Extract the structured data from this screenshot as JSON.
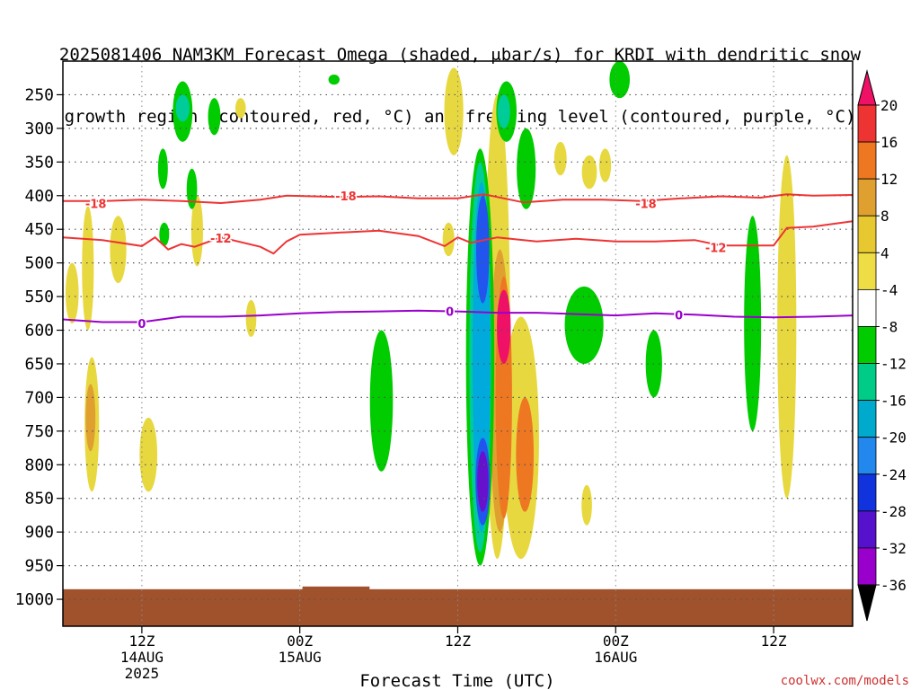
{
  "title": {
    "line1": "2025081406 NAM3KM Forecast Omega (shaded, μbar/s) for KRDI with dendritic snow",
    "line2": "growth region (contoured, red, °C) and freezing level (contoured, purple, °C)"
  },
  "credit": "coolwx.com/models",
  "chart_data": {
    "type": "heatmap",
    "xlabel": "Forecast Time (UTC)",
    "ylabel": "",
    "x_unit": "hours since 2025-08-14 06Z",
    "xlim": [
      0,
      60
    ],
    "ylim": [
      1040,
      200
    ],
    "y_ticks": [
      250,
      300,
      350,
      400,
      450,
      500,
      550,
      600,
      650,
      700,
      750,
      800,
      850,
      900,
      950,
      1000
    ],
    "x_ticks": [
      {
        "x": 6,
        "label": "12Z",
        "sub": "14AUG",
        "sub2": "2025"
      },
      {
        "x": 18,
        "label": "00Z",
        "sub": "15AUG",
        "sub2": ""
      },
      {
        "x": 30,
        "label": "12Z",
        "sub": "",
        "sub2": ""
      },
      {
        "x": 42,
        "label": "00Z",
        "sub": "16AUG",
        "sub2": ""
      },
      {
        "x": 54,
        "label": "12Z",
        "sub": "",
        "sub2": ""
      }
    ],
    "grid": true,
    "colorbar": {
      "labels": [
        "20",
        "16",
        "12",
        "8",
        "4",
        "-4",
        "-8",
        "-12",
        "-16",
        "-20",
        "-24",
        "-28",
        "-32",
        "-36"
      ],
      "colors": [
        "#ee1166",
        "#ee3333",
        "#ee7722",
        "#e0a030",
        "#e8c830",
        "#eedd44",
        "#ffffff",
        "#00cc00",
        "#00cc88",
        "#00aacc",
        "#2288ee",
        "#1133dd",
        "#5511cc",
        "#9900cc",
        "#aaaaaa",
        "#000000"
      ]
    },
    "terrain_color": "#a0522d",
    "shaded_regions": [
      {
        "level": 8,
        "x": 0.7,
        "y0": 500,
        "y1": 590,
        "w": 0.45
      },
      {
        "level": 8,
        "x": 1.9,
        "y0": 415,
        "y1": 600,
        "w": 0.35
      },
      {
        "level": 8,
        "x": 2.2,
        "y0": 640,
        "y1": 840,
        "w": 0.55
      },
      {
        "level": 12,
        "x": 2.1,
        "y0": 680,
        "y1": 780,
        "w": 0.2
      },
      {
        "level": 8,
        "x": 4.2,
        "y0": 430,
        "y1": 530,
        "w": 0.7
      },
      {
        "level": 8,
        "x": 6.5,
        "y0": 730,
        "y1": 840,
        "w": 0.8
      },
      {
        "level": 8,
        "x": 10.2,
        "y0": 400,
        "y1": 505,
        "w": 0.35
      },
      {
        "level": 8,
        "x": 14.3,
        "y0": 555,
        "y1": 610,
        "w": 0.25
      },
      {
        "level": 8,
        "x": 13.5,
        "y0": 255,
        "y1": 285,
        "w": 0.25
      },
      {
        "level": 8,
        "x": 29.7,
        "y0": 210,
        "y1": 340,
        "w": 0.9
      },
      {
        "level": 8,
        "x": 29.3,
        "y0": 440,
        "y1": 490,
        "w": 0.35
      },
      {
        "level": 8,
        "x": 33.0,
        "y0": 250,
        "y1": 940,
        "w": 1.4
      },
      {
        "level": 8,
        "x": 34.8,
        "y0": 580,
        "y1": 940,
        "w": 2.2
      },
      {
        "level": 12,
        "x": 33.2,
        "y0": 480,
        "y1": 900,
        "w": 1.0
      },
      {
        "level": 16,
        "x": 33.5,
        "y0": 520,
        "y1": 880,
        "w": 0.7
      },
      {
        "level": 20,
        "x": 33.5,
        "y0": 540,
        "y1": 650,
        "w": 0.5
      },
      {
        "level": 16,
        "x": 35.1,
        "y0": 700,
        "y1": 870,
        "w": 0.8
      },
      {
        "level": 8,
        "x": 37.8,
        "y0": 320,
        "y1": 370,
        "w": 0.4
      },
      {
        "level": 8,
        "x": 40.0,
        "y0": 340,
        "y1": 390,
        "w": 0.6
      },
      {
        "level": 8,
        "x": 41.2,
        "y0": 330,
        "y1": 380,
        "w": 0.35
      },
      {
        "level": 8,
        "x": 39.8,
        "y0": 830,
        "y1": 890,
        "w": 0.25
      },
      {
        "level": 8,
        "x": 55.0,
        "y0": 340,
        "y1": 850,
        "w": 0.9
      },
      {
        "level": -8,
        "x": 9.1,
        "y0": 230,
        "y1": 320,
        "w": 0.95
      },
      {
        "level": -12,
        "x": 9.1,
        "y0": 250,
        "y1": 290,
        "w": 0.5
      },
      {
        "level": -8,
        "x": 7.6,
        "y0": 330,
        "y1": 390,
        "w": 0.2
      },
      {
        "level": -8,
        "x": 11.5,
        "y0": 255,
        "y1": 310,
        "w": 0.4
      },
      {
        "level": -8,
        "x": 20.6,
        "y0": 220,
        "y1": 235,
        "w": 0.3
      },
      {
        "level": -8,
        "x": 7.7,
        "y0": 440,
        "y1": 475,
        "w": 0.2
      },
      {
        "level": -8,
        "x": 9.8,
        "y0": 360,
        "y1": 420,
        "w": 0.25
      },
      {
        "level": -8,
        "x": 24.2,
        "y0": 600,
        "y1": 810,
        "w": 1.2
      },
      {
        "level": -8,
        "x": 31.7,
        "y0": 330,
        "y1": 950,
        "w": 1.6
      },
      {
        "level": -12,
        "x": 31.7,
        "y0": 350,
        "y1": 930,
        "w": 1.1
      },
      {
        "level": -16,
        "x": 31.8,
        "y0": 380,
        "y1": 900,
        "w": 0.8
      },
      {
        "level": -20,
        "x": 31.9,
        "y0": 400,
        "y1": 560,
        "w": 0.45
      },
      {
        "level": -20,
        "x": 31.9,
        "y0": 760,
        "y1": 890,
        "w": 0.55
      },
      {
        "level": -28,
        "x": 31.9,
        "y0": 780,
        "y1": 870,
        "w": 0.3
      },
      {
        "level": -8,
        "x": 33.7,
        "y0": 230,
        "y1": 320,
        "w": 1.0
      },
      {
        "level": -12,
        "x": 33.5,
        "y0": 250,
        "y1": 300,
        "w": 0.4
      },
      {
        "level": -8,
        "x": 35.2,
        "y0": 300,
        "y1": 420,
        "w": 0.9
      },
      {
        "level": -8,
        "x": 39.6,
        "y0": 535,
        "y1": 650,
        "w": 2.4
      },
      {
        "level": -8,
        "x": 42.3,
        "y0": 200,
        "y1": 255,
        "w": 1.0
      },
      {
        "level": -8,
        "x": 44.9,
        "y0": 600,
        "y1": 700,
        "w": 0.7
      },
      {
        "level": -8,
        "x": 52.4,
        "y0": 430,
        "y1": 750,
        "w": 0.75
      }
    ],
    "contours": [
      {
        "value": "-18",
        "color": "#ee3333",
        "x": [
          0,
          3,
          6,
          9,
          12,
          15,
          17,
          19,
          21,
          24,
          27,
          30,
          32,
          35,
          38,
          41,
          44,
          47,
          50,
          53,
          55,
          57,
          60
        ],
        "y": [
          408,
          408,
          406,
          408,
          411,
          406,
          400,
          401,
          402,
          401,
          404,
          404,
          398,
          410,
          406,
          406,
          408,
          404,
          401,
          403,
          398,
          400,
          399
        ],
        "labels": [
          {
            "x": 2.5,
            "y": 412
          },
          {
            "x": 21.5,
            "y": 400
          },
          {
            "x": 44.3,
            "y": 412
          }
        ]
      },
      {
        "value": "-12",
        "color": "#ee3333",
        "x": [
          0,
          3,
          6,
          7,
          8,
          9,
          10,
          12,
          15,
          16,
          17,
          18,
          21,
          24,
          27,
          29,
          30,
          31,
          33,
          36,
          39,
          42,
          45,
          48,
          50,
          52,
          54,
          55,
          57,
          60
        ],
        "y": [
          462,
          466,
          475,
          462,
          480,
          472,
          476,
          462,
          476,
          486,
          468,
          458,
          455,
          452,
          460,
          475,
          462,
          470,
          462,
          468,
          464,
          468,
          468,
          466,
          474,
          474,
          474,
          448,
          446,
          438
        ],
        "labels": [
          {
            "x": 12.0,
            "y": 463
          },
          {
            "x": 49.6,
            "y": 477
          }
        ]
      },
      {
        "value": "0",
        "color": "#9900cc",
        "x": [
          0,
          3,
          6,
          9,
          12,
          15,
          18,
          21,
          24,
          27,
          30,
          33,
          36,
          39,
          42,
          45,
          48,
          51,
          54,
          57,
          60
        ],
        "y": [
          584,
          588,
          588,
          580,
          580,
          578,
          575,
          573,
          572,
          571,
          572,
          574,
          574,
          576,
          578,
          575,
          577,
          580,
          581,
          580,
          578
        ],
        "labels": [
          {
            "x": 6.0,
            "y": 590
          },
          {
            "x": 29.4,
            "y": 572
          },
          {
            "x": 46.8,
            "y": 577
          }
        ]
      }
    ]
  }
}
